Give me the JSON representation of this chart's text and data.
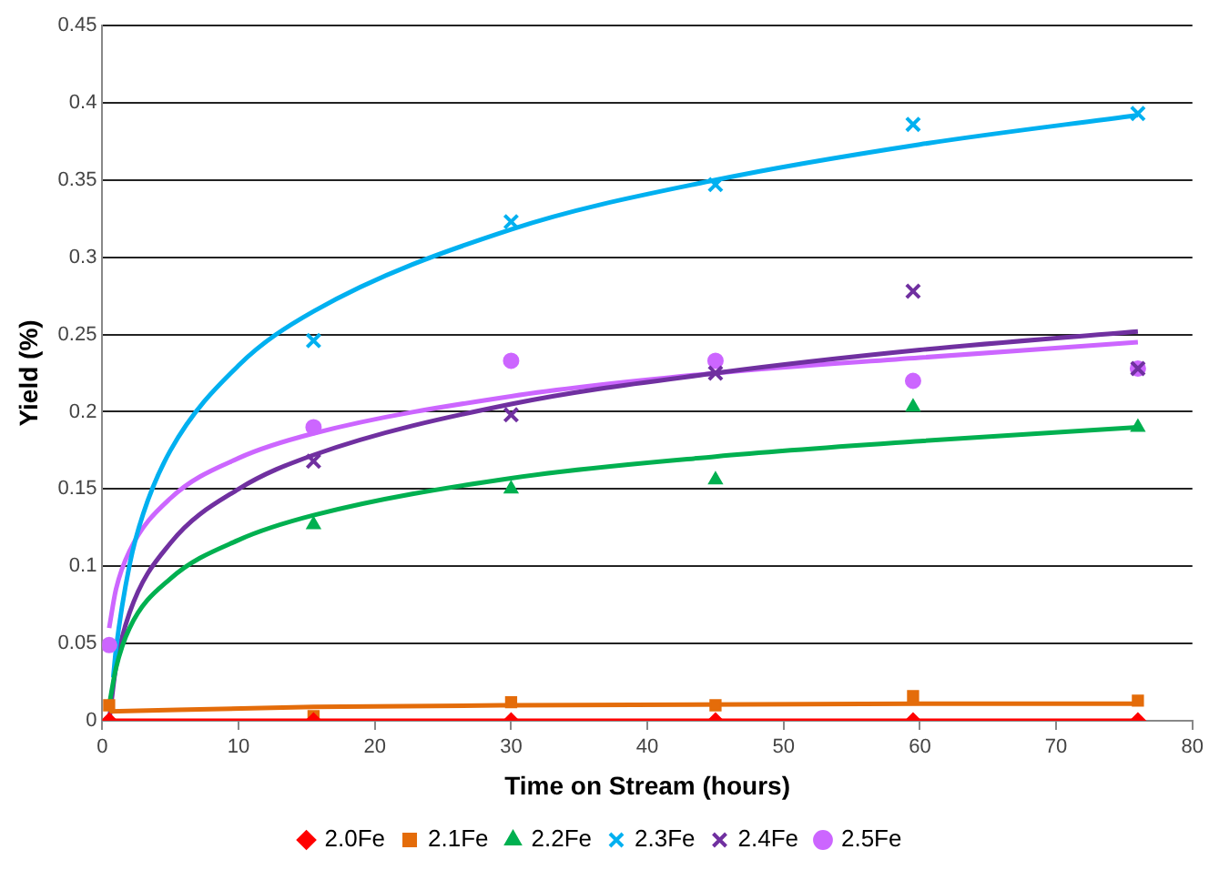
{
  "chart_data": {
    "type": "scatter",
    "xlabel": "Time on Stream (hours)",
    "ylabel": "Yield (%)",
    "x": [
      0.5,
      15.5,
      30,
      45,
      59.5,
      76
    ],
    "xlim": [
      0,
      80
    ],
    "xticks": [
      0,
      10,
      20,
      30,
      40,
      50,
      60,
      70,
      80
    ],
    "ylim": [
      0,
      0.45
    ],
    "yticks": [
      0,
      0.05,
      0.1,
      0.15,
      0.2,
      0.25,
      0.3,
      0.35,
      0.4,
      0.45
    ],
    "grid": "y",
    "legend": "bottom",
    "series": [
      {
        "name": "2.0Fe",
        "color": "#ff0000",
        "marker": "diamond",
        "values": [
          0,
          0,
          0,
          0,
          0,
          0
        ]
      },
      {
        "name": "2.1Fe",
        "color": "#e46c0a",
        "marker": "square",
        "values": [
          0.01,
          0.003,
          0.012,
          0.01,
          0.016,
          0.013
        ]
      },
      {
        "name": "2.2Fe",
        "color": "#00b050",
        "marker": "triangle",
        "values": [
          null,
          0.127,
          0.15,
          0.156,
          0.203,
          0.19
        ]
      },
      {
        "name": "2.3Fe",
        "color": "#00b0f0",
        "marker": "cross",
        "values": [
          null,
          0.246,
          0.323,
          0.347,
          0.386,
          0.393
        ]
      },
      {
        "name": "2.4Fe",
        "color": "#7030a0",
        "marker": "cross",
        "values": [
          null,
          0.168,
          0.198,
          0.225,
          0.278,
          0.228
        ]
      },
      {
        "name": "2.5Fe",
        "color": "#cc66ff",
        "marker": "circle",
        "values": [
          0.049,
          0.19,
          0.233,
          0.233,
          0.22,
          0.228
        ]
      },
      {
        "type": "line",
        "color": "#ff0000",
        "marker": "none",
        "x": [
          0.5,
          76
        ],
        "values": [
          0,
          0
        ]
      },
      {
        "type": "line",
        "color": "#e46c0a",
        "marker": "none",
        "x": [
          0.5,
          15.5,
          30,
          60,
          76
        ],
        "values": [
          0.006,
          0.009,
          0.01,
          0.011,
          0.011
        ]
      },
      {
        "type": "line",
        "color": "#00b050",
        "marker": "none",
        "x": [
          0.5,
          1,
          2,
          5,
          10,
          15.5,
          30,
          45,
          60,
          76
        ],
        "values": [
          0.01,
          0.034,
          0.06,
          0.092,
          0.117,
          0.133,
          0.157,
          0.171,
          0.181,
          0.19
        ]
      },
      {
        "type": "line",
        "color": "#00b0f0",
        "marker": "none",
        "x": [
          0.8,
          1,
          2,
          3,
          5,
          10,
          15.5,
          30,
          45,
          60,
          76
        ],
        "values": [
          0.028,
          0.046,
          0.101,
          0.134,
          0.175,
          0.23,
          0.265,
          0.318,
          0.35,
          0.373,
          0.392
        ]
      },
      {
        "type": "line",
        "color": "#7030a0",
        "marker": "none",
        "x": [
          0.5,
          1,
          2,
          5,
          10,
          15.5,
          30,
          45,
          60,
          76
        ],
        "values": [
          0,
          0.035,
          0.07,
          0.115,
          0.15,
          0.172,
          0.205,
          0.225,
          0.24,
          0.252
        ]
      },
      {
        "type": "line",
        "color": "#cc66ff",
        "marker": "none",
        "x": [
          0.5,
          1,
          2,
          5,
          10,
          15.5,
          30,
          45,
          60,
          76
        ],
        "values": [
          0.06,
          0.085,
          0.11,
          0.144,
          0.17,
          0.186,
          0.21,
          0.225,
          0.235,
          0.245
        ]
      }
    ]
  }
}
